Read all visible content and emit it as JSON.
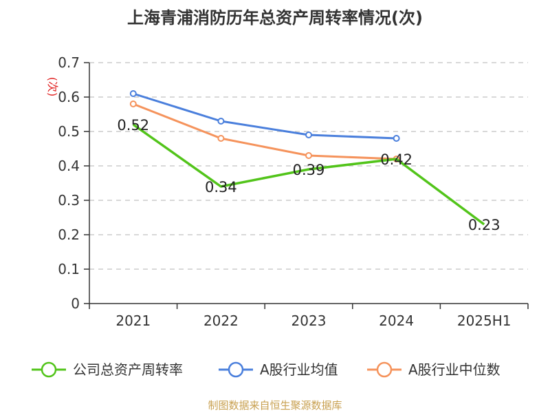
{
  "chart_data": {
    "type": "line",
    "title": "上海青浦消防历年总资产周转率情况(次)",
    "ylabel": "(次)",
    "categories": [
      "2021",
      "2022",
      "2023",
      "2024",
      "2025H1"
    ],
    "ylim": [
      0,
      0.7
    ],
    "yticks": [
      "0",
      "0.1",
      "0.2",
      "0.3",
      "0.4",
      "0.5",
      "0.6",
      "0.7"
    ],
    "grid": true,
    "legend": "bottom",
    "series": [
      {
        "name": "公司总资产周转率",
        "color": "#52c41a",
        "values": [
          0.52,
          0.34,
          0.39,
          0.42,
          0.23
        ],
        "labels": [
          "0.52",
          "0.34",
          "0.39",
          "0.42",
          "0.23"
        ]
      },
      {
        "name": "A股行业均值",
        "color": "#4a7fdc",
        "values": [
          0.61,
          0.53,
          0.49,
          0.48,
          null
        ]
      },
      {
        "name": "A股行业中位数",
        "color": "#f5935c",
        "values": [
          0.58,
          0.48,
          0.43,
          0.42,
          null
        ]
      }
    ]
  },
  "source": "制图数据来自恒生聚源数据库",
  "colors": {
    "source_text": "#c8a050",
    "unit_text": "#e02020",
    "axis": "#333333",
    "grid": "#cccccc"
  }
}
